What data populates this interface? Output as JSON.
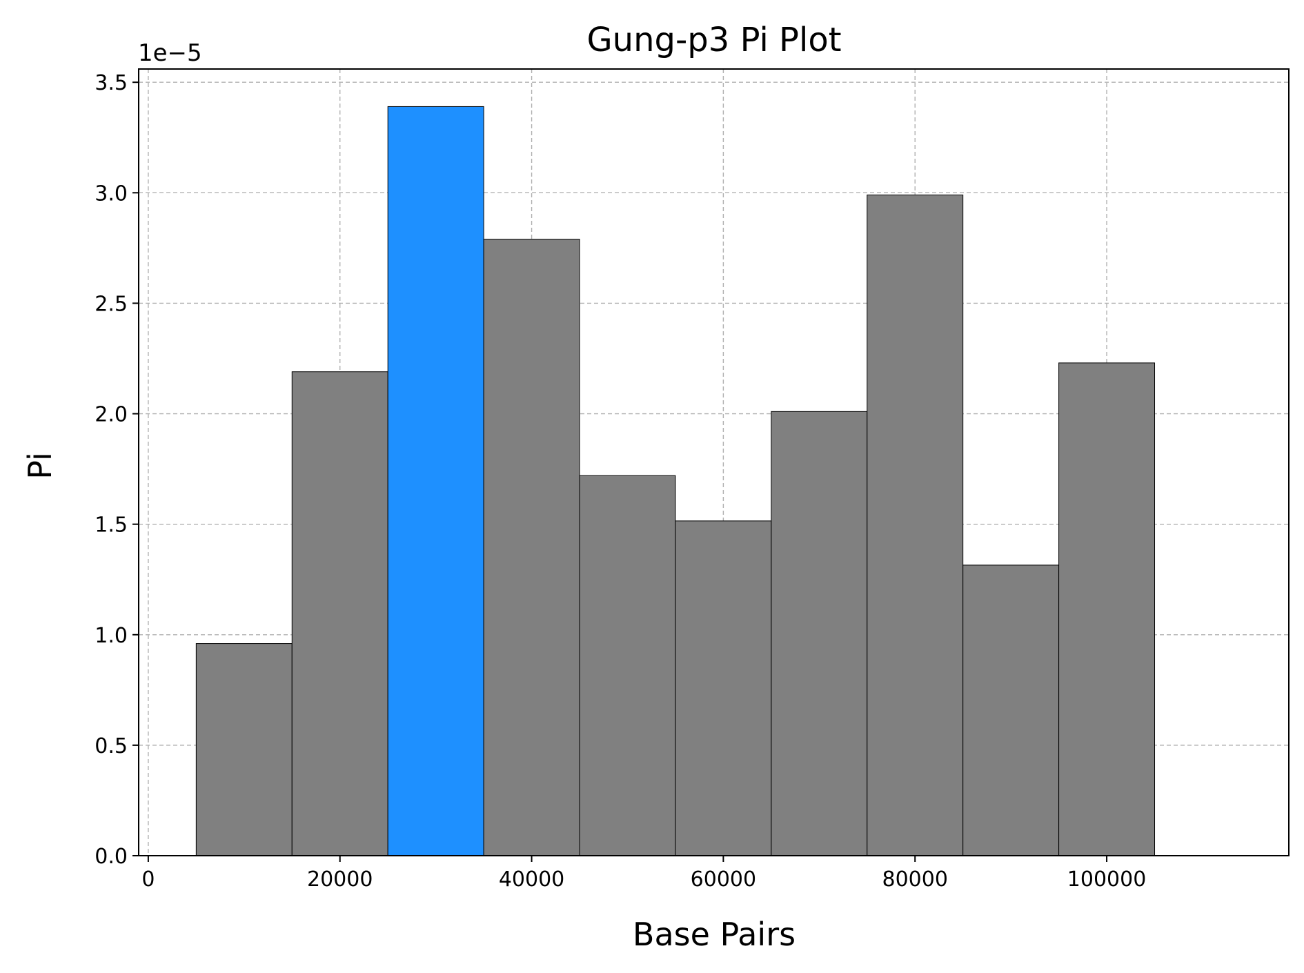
{
  "chart_data": {
    "type": "bar",
    "title": "Gung-p3 Pi Plot",
    "xlabel": "Base Pairs",
    "ylabel": "Pi",
    "y_offset_label": "1e−5",
    "xlim": [
      -1000,
      119000
    ],
    "ylim": [
      0,
      3.56
    ],
    "bin_width": 10000,
    "x": [
      10000,
      20000,
      30000,
      40000,
      50000,
      60000,
      70000,
      80000,
      90000,
      100000
    ],
    "values": [
      0.96,
      2.19,
      3.39,
      2.79,
      1.72,
      1.515,
      2.01,
      2.99,
      1.315,
      2.23
    ],
    "highlight_index": 2,
    "colors": {
      "default": "#808080",
      "highlight": "#1e90ff"
    },
    "x_ticks": [
      0,
      20000,
      40000,
      60000,
      80000,
      100000
    ],
    "x_tick_labels": [
      "0",
      "20000",
      "40000",
      "60000",
      "80000",
      "100000"
    ],
    "y_ticks": [
      0,
      0.5,
      1.0,
      1.5,
      2.0,
      2.5,
      3.0,
      3.5
    ],
    "y_tick_labels": [
      "0.0",
      "0.5",
      "1.0",
      "1.5",
      "2.0",
      "2.5",
      "3.0",
      "3.5"
    ],
    "grid": true
  }
}
